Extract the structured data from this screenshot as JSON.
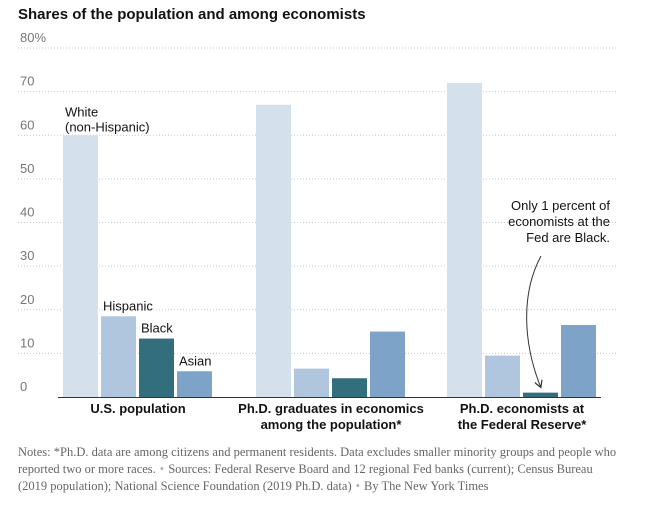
{
  "title": "Shares of the population and among economists",
  "chart_data": {
    "type": "bar",
    "title": "Shares of the population and among economists",
    "ylim": [
      0,
      80
    ],
    "yticks": [
      {
        "value": 0,
        "label": "0"
      },
      {
        "value": 10,
        "label": "10"
      },
      {
        "value": 20,
        "label": "20"
      },
      {
        "value": 30,
        "label": "30"
      },
      {
        "value": 40,
        "label": "40"
      },
      {
        "value": 50,
        "label": "50"
      },
      {
        "value": 60,
        "label": "60"
      },
      {
        "value": 70,
        "label": "70"
      },
      {
        "value": 80,
        "label": "80%"
      }
    ],
    "grid": true,
    "categories": [
      {
        "lines": [
          "U.S. population"
        ]
      },
      {
        "lines": [
          "Ph.D. graduates in economics",
          "among the population*"
        ]
      },
      {
        "lines": [
          "Ph.D. economists at",
          "the Federal Reserve*"
        ]
      }
    ],
    "series": [
      {
        "name": "White (non-Hispanic)",
        "label_lines": [
          "White",
          "(non-Hispanic)"
        ],
        "color": "#d5e0ed",
        "values": [
          60,
          67,
          72
        ]
      },
      {
        "name": "Hispanic",
        "label_lines": [
          "Hispanic"
        ],
        "color": "#b0c6df",
        "values": [
          18.5,
          6.5,
          9.5
        ]
      },
      {
        "name": "Black",
        "label_lines": [
          "Black"
        ],
        "color": "#336e7d",
        "values": [
          13.4,
          4.3,
          1
        ]
      },
      {
        "name": "Asian",
        "label_lines": [
          "Asian"
        ],
        "color": "#7ea3c9",
        "values": [
          5.9,
          15,
          16.5
        ]
      }
    ],
    "annotation": {
      "lines": [
        "Only 1 percent of",
        "economists at the",
        "Fed are Black."
      ]
    }
  },
  "notes": {
    "text1": "Notes: *Ph.D. data are among citizens and permanent residents. Data excludes smaller minority groups and people who reported two or more races.",
    "text2": "Sources: Federal Reserve Board and 12 regional Fed banks (current); Census Bureau (2019 population); National Science Foundation (2019 Ph.D. data)",
    "text3": "By The New York Times"
  }
}
